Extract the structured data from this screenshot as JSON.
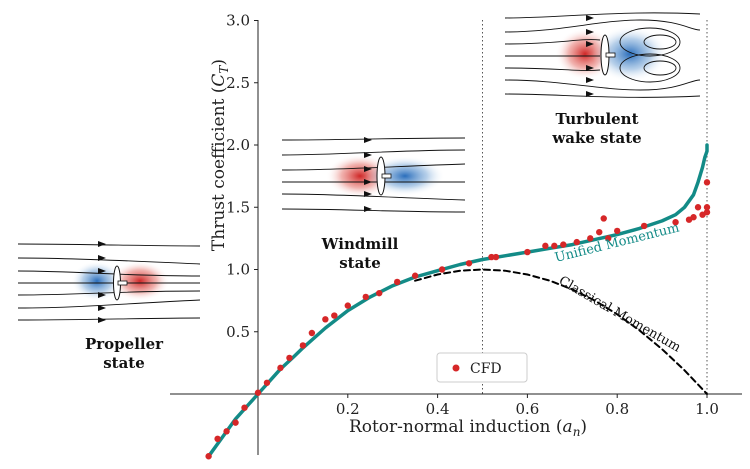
{
  "chart_data": {
    "type": "scatter",
    "xlabel": "Rotor-normal induction (a_n)",
    "ylabel": "Thrust coefficient (C_T)",
    "xlim": [
      -0.11,
      1.09
    ],
    "ylim": [
      -0.5,
      3.0
    ],
    "x_ticks": [
      0.2,
      0.4,
      0.6,
      0.8,
      1.0
    ],
    "x_tick_labels": [
      "0.2",
      "0.4",
      "0.6",
      "0.8",
      "1.0"
    ],
    "y_ticks": [
      0.5,
      1.0,
      1.5,
      2.0,
      2.5,
      3.0
    ],
    "y_tick_labels": [
      "0.5",
      "1.0",
      "1.5",
      "2.0",
      "2.5",
      "3.0"
    ],
    "vertical_reference_lines": [
      0.5,
      1.0
    ],
    "series": [
      {
        "name": "Unified Momentum",
        "style": "solid",
        "color": "#138b87",
        "x": [
          -0.11,
          -0.08,
          -0.05,
          -0.02,
          0.0,
          0.02,
          0.05,
          0.08,
          0.1,
          0.15,
          0.2,
          0.25,
          0.3,
          0.35,
          0.4,
          0.45,
          0.5,
          0.55,
          0.6,
          0.65,
          0.7,
          0.75,
          0.8,
          0.85,
          0.9,
          0.93,
          0.95,
          0.97,
          0.98,
          0.99,
          0.995,
          1.0,
          1.0
        ],
        "y": [
          -0.5,
          -0.35,
          -0.2,
          -0.08,
          0.0,
          0.08,
          0.2,
          0.3,
          0.37,
          0.53,
          0.67,
          0.78,
          0.87,
          0.94,
          0.99,
          1.04,
          1.08,
          1.11,
          1.14,
          1.17,
          1.2,
          1.24,
          1.28,
          1.33,
          1.39,
          1.44,
          1.5,
          1.6,
          1.7,
          1.82,
          1.9,
          1.95,
          2.0
        ]
      },
      {
        "name": "Classical Momentum",
        "style": "dashed",
        "color": "#000000",
        "x": [
          0.35,
          0.4,
          0.45,
          0.5,
          0.55,
          0.6,
          0.65,
          0.7,
          0.75,
          0.8,
          0.85,
          0.9,
          0.95,
          1.0
        ],
        "y": [
          0.91,
          0.96,
          0.99,
          1.0,
          0.99,
          0.96,
          0.91,
          0.84,
          0.75,
          0.64,
          0.51,
          0.36,
          0.19,
          0.0
        ]
      },
      {
        "name": "CFD",
        "style": "markers",
        "color": "#d62728",
        "x": [
          -0.11,
          -0.09,
          -0.07,
          -0.05,
          -0.03,
          0.0,
          0.02,
          0.05,
          0.07,
          0.1,
          0.12,
          0.15,
          0.17,
          0.2,
          0.24,
          0.27,
          0.31,
          0.35,
          0.41,
          0.47,
          0.52,
          0.53,
          0.6,
          0.64,
          0.66,
          0.68,
          0.71,
          0.74,
          0.76,
          0.77,
          0.78,
          0.8,
          0.86,
          0.93,
          0.96,
          0.97,
          0.98,
          0.99,
          1.0,
          1.0,
          1.0
        ],
        "y": [
          -0.5,
          -0.36,
          -0.3,
          -0.23,
          -0.11,
          0.01,
          0.09,
          0.21,
          0.29,
          0.39,
          0.49,
          0.6,
          0.63,
          0.71,
          0.78,
          0.81,
          0.9,
          0.95,
          1.0,
          1.05,
          1.1,
          1.1,
          1.14,
          1.19,
          1.19,
          1.2,
          1.22,
          1.25,
          1.3,
          1.41,
          1.25,
          1.31,
          1.35,
          1.38,
          1.4,
          1.42,
          1.5,
          1.44,
          1.7,
          1.46,
          1.5
        ]
      }
    ],
    "curve_labels": [
      "Unified Momentum",
      "Classical Momentum"
    ],
    "legend": {
      "position": "bottom-center",
      "entries": [
        "CFD"
      ]
    },
    "insets": [
      {
        "name": "propeller",
        "label_lines": [
          "Propeller",
          "state"
        ]
      },
      {
        "name": "windmill",
        "label_lines": [
          "Windmill",
          "state"
        ]
      },
      {
        "name": "turbulent-wake",
        "label_lines": [
          "Turbulent",
          "wake state"
        ]
      }
    ]
  }
}
